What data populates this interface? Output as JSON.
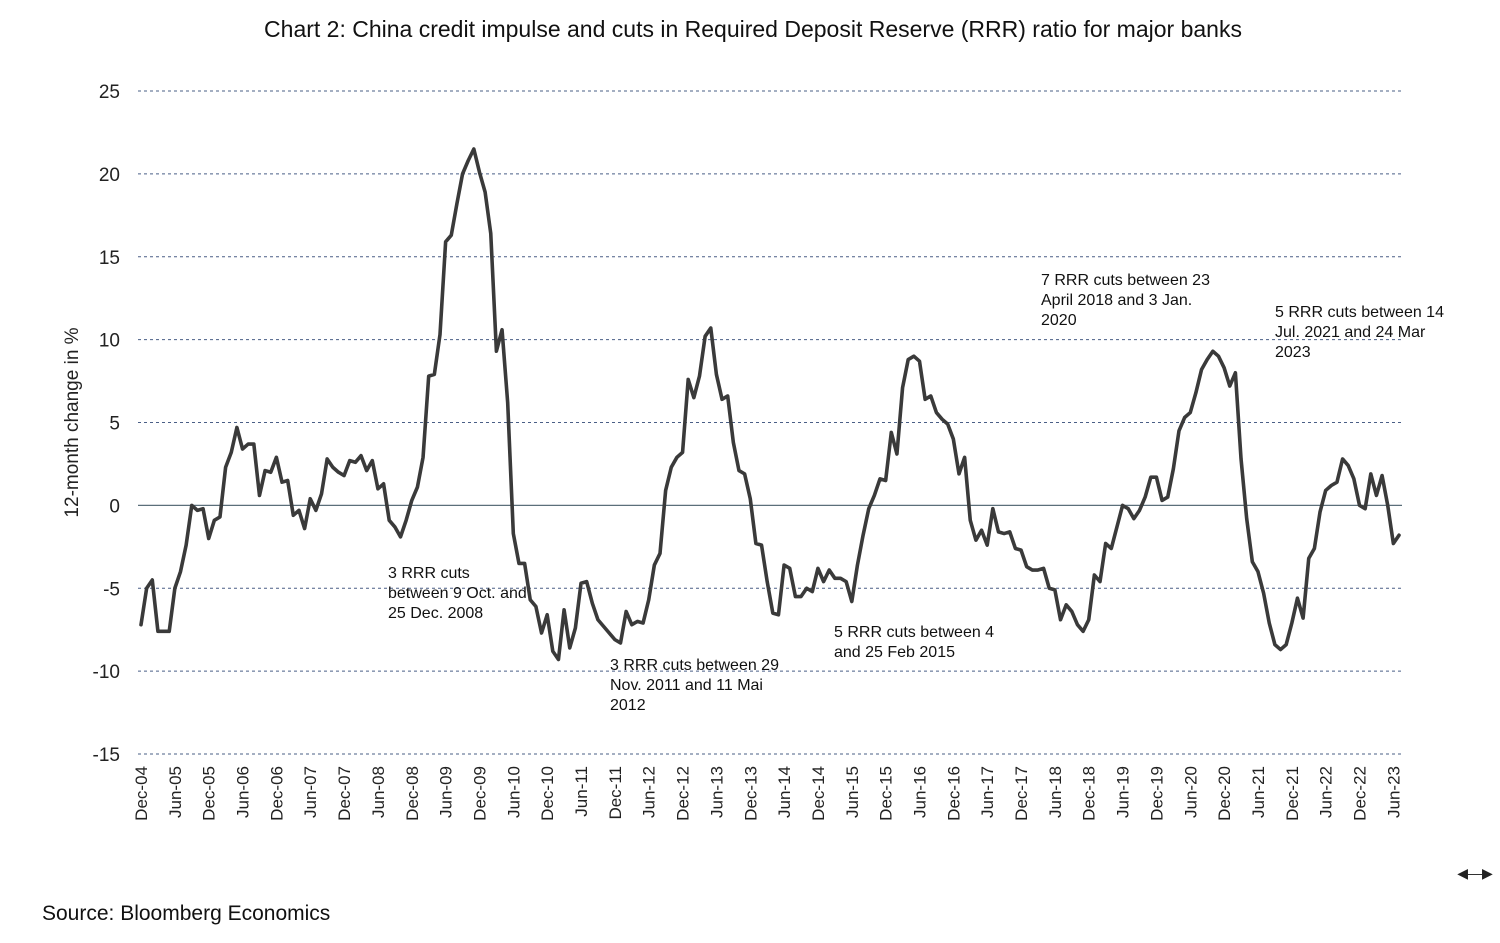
{
  "chart_data": {
    "type": "line",
    "title": "Chart 2: China credit impulse and cuts in Required Deposit Reserve (RRR) ratio for major banks",
    "ylabel": "12-month change in %",
    "xlabel": "",
    "ylim": [
      -15,
      25
    ],
    "yticks": [
      25,
      20,
      15,
      10,
      5,
      0,
      -5,
      -10,
      -15
    ],
    "grid": "horizontal dashed",
    "x_tick_labels": [
      "Dec-04",
      "Jun-05",
      "Dec-05",
      "Jun-06",
      "Dec-06",
      "Jun-07",
      "Dec-07",
      "Jun-08",
      "Dec-08",
      "Jun-09",
      "Dec-09",
      "Jun-10",
      "Dec-10",
      "Jun-11",
      "Dec-11",
      "Jun-12",
      "Dec-12",
      "Jun-13",
      "Dec-13",
      "Jun-14",
      "Dec-14",
      "Jun-15",
      "Dec-15",
      "Jun-16",
      "Dec-16",
      "Jun-17",
      "Dec-17",
      "Jun-18",
      "Dec-18",
      "Jun-19",
      "Dec-19",
      "Jun-20",
      "Dec-20",
      "Jun-21",
      "Dec-21",
      "Jun-22",
      "Dec-22",
      "Jun-23"
    ],
    "x_start": "Dec-04",
    "x_end": "Jul-23",
    "series": [
      {
        "color": "#3a3a3a",
        "values": [
          -7.2,
          -5.0,
          -4.5,
          -7.6,
          -7.6,
          -7.6,
          -5.0,
          -4.0,
          -2.4,
          0.0,
          -0.3,
          -0.2,
          -2.0,
          -0.9,
          -0.7,
          2.3,
          3.2,
          4.7,
          3.4,
          3.7,
          3.7,
          0.6,
          2.1,
          2.0,
          2.9,
          1.4,
          1.5,
          -0.6,
          -0.3,
          -1.4,
          0.4,
          -0.3,
          0.7,
          2.8,
          2.3,
          2.0,
          1.8,
          2.7,
          2.6,
          3.0,
          2.1,
          2.7,
          1.0,
          1.3,
          -0.9,
          -1.3,
          -1.9,
          -0.9,
          0.3,
          1.1,
          2.9,
          7.8,
          7.9,
          10.3,
          15.9,
          16.3,
          18.2,
          20.0,
          20.8,
          21.5,
          20.1,
          18.9,
          16.4,
          9.3,
          10.6,
          6.2,
          -1.7,
          -3.5,
          -3.5,
          -5.7,
          -6.1,
          -7.7,
          -6.6,
          -8.8,
          -9.3,
          -6.3,
          -8.6,
          -7.4,
          -4.7,
          -4.6,
          -5.9,
          -6.9,
          -7.3,
          -7.7,
          -8.1,
          -8.3,
          -6.4,
          -7.2,
          -7.0,
          -7.1,
          -5.7,
          -3.6,
          -2.9,
          0.9,
          2.3,
          2.9,
          3.2,
          7.6,
          6.5,
          7.8,
          10.2,
          10.7,
          7.9,
          6.4,
          6.6,
          3.8,
          2.1,
          1.9,
          0.4,
          -2.3,
          -2.4,
          -4.6,
          -6.5,
          -6.6,
          -3.6,
          -3.8,
          -5.5,
          -5.5,
          -5.0,
          -5.2,
          -3.8,
          -4.6,
          -3.9,
          -4.4,
          -4.4,
          -4.6,
          -5.8,
          -3.6,
          -1.8,
          -0.2,
          0.6,
          1.6,
          1.5,
          4.4,
          3.1,
          7.1,
          8.8,
          9.0,
          8.7,
          6.4,
          6.6,
          5.6,
          5.2,
          4.9,
          4.0,
          1.9,
          2.9,
          -0.9,
          -2.1,
          -1.5,
          -2.4,
          -0.2,
          -1.6,
          -1.7,
          -1.6,
          -2.6,
          -2.7,
          -3.7,
          -3.9,
          -3.9,
          -3.8,
          -5.0,
          -5.1,
          -6.9,
          -6.0,
          -6.4,
          -7.2,
          -7.6,
          -6.9,
          -4.2,
          -4.6,
          -2.3,
          -2.6,
          -1.3,
          0.0,
          -0.2,
          -0.8,
          -0.3,
          0.5,
          1.7,
          1.7,
          0.3,
          0.5,
          2.2,
          4.5,
          5.3,
          5.6,
          6.8,
          8.2,
          8.8,
          9.3,
          9.0,
          8.3,
          7.2,
          8.0,
          2.8,
          -0.8,
          -3.4,
          -4.0,
          -5.3,
          -7.1,
          -8.4,
          -8.7,
          -8.4,
          -7.1,
          -5.6,
          -6.8,
          -3.2,
          -2.6,
          -0.4,
          0.9,
          1.2,
          1.4,
          2.8,
          2.4,
          1.6,
          0.0,
          -0.2,
          1.9,
          0.6,
          1.8,
          0.0,
          -2.3,
          -1.8
        ]
      }
    ],
    "annotations": [
      {
        "lines": [
          "3 RRR cuts",
          "between 9 Oct. and",
          "25 Dec. 2008"
        ]
      },
      {
        "lines": [
          "3 RRR cuts between 29",
          "Nov. 2011 and 11 Mai",
          "2012"
        ]
      },
      {
        "lines": [
          "5 RRR cuts between 4",
          "and 25 Feb 2015"
        ]
      },
      {
        "lines": [
          "7 RRR cuts between 23",
          "April 2018 and 3 Jan.",
          "2020"
        ]
      },
      {
        "lines": [
          "5 RRR cuts between 14",
          "Jul. 2021 and 24 Mar",
          "2023"
        ]
      }
    ]
  },
  "source": "Source: Bloomberg Economics",
  "icons": {
    "resize_handle": "resize-handle-icon"
  }
}
